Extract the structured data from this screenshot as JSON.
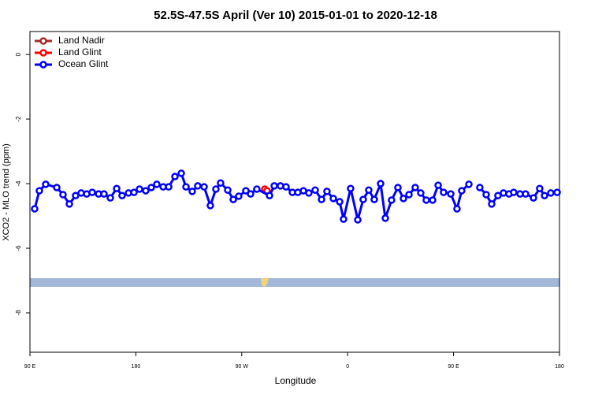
{
  "chart_data": {
    "type": "line",
    "title": "52.5S-47.5S April (Ver 10)   2015-01-01 to 2020-12-18",
    "x_label": "Longitude",
    "y_label": "XCO2 - MLO trend (ppm)",
    "xlim": [
      -270,
      180
    ],
    "xticks": [
      {
        "value": -270,
        "label": "90 E"
      },
      {
        "value": -180,
        "label": "180"
      },
      {
        "value": -90,
        "label": "90 W"
      },
      0,
      {
        "value": 90,
        "label": "90 E"
      },
      180
    ],
    "ylim": [
      -9.22,
      0.71
    ],
    "yticks": [
      0,
      -2,
      -4,
      -6,
      -8
    ],
    "legend": "top-left",
    "series": [
      {
        "name": "Land Nadir",
        "color": "#a52a2a",
        "x": [],
        "values": []
      },
      {
        "name": "Land Glint",
        "color": "#ff0000",
        "x": [
          -70.5,
          -68.5
        ],
        "values": [
          -4.17,
          -4.22
        ]
      },
      {
        "name": "Ocean Glint",
        "color": "#0000ff",
        "x": [
          -266.0,
          -262.0,
          -256.6,
          -247.2,
          -241.9,
          -236.5,
          -231.2,
          -226.5,
          -221.8,
          -217.1,
          -211.7,
          -207.1,
          -201.7,
          -196.3,
          -191.7,
          -186.3,
          -181.6,
          -176.9,
          -171.6,
          -166.9,
          -162.2,
          -156.8,
          -152.1,
          -146.8,
          -141.4,
          -137.4,
          -132.1,
          -127.4,
          -122.0,
          -116.7,
          -112.0,
          -108.0,
          -101.9,
          -97.2,
          -92.6,
          -86.5,
          -82.5,
          -77.2,
          -66.4,
          -62.4,
          -57.1,
          -52.4,
          -47.0,
          -42.3,
          -37.6,
          -33.0,
          -27.6,
          -22.2,
          -17.6,
          -12.2,
          -6.8,
          -3.5,
          2.5,
          8.6,
          13.2,
          17.9,
          22.6,
          28.0,
          32.0,
          37.3,
          42.7,
          47.4,
          52.1,
          57.4,
          62.1,
          66.8,
          72.2,
          76.9,
          81.5,
          87.6,
          92.9,
          96.9,
          103.0,
          107.7,
          112.3,
          117.7,
          122.4,
          127.7,
          132.4,
          137.1,
          141.1,
          146.5,
          151.2,
          157.9,
          163.2,
          167.3,
          172.6,
          178.0
        ],
        "values": [
          -4.78,
          -4.22,
          -4.02,
          -4.12,
          -4.34,
          -4.63,
          -4.37,
          -4.29,
          -4.32,
          -4.27,
          -4.32,
          -4.32,
          -4.44,
          -4.15,
          -4.37,
          -4.29,
          -4.27,
          -4.17,
          -4.22,
          -4.12,
          -4.02,
          -4.1,
          -4.1,
          -3.78,
          -3.68,
          -4.1,
          -4.24,
          -4.07,
          -4.1,
          -4.68,
          -4.17,
          -3.98,
          -4.2,
          -4.49,
          -4.39,
          -4.22,
          -4.32,
          -4.17,
          -4.37,
          -4.07,
          -4.07,
          -4.1,
          -4.27,
          -4.27,
          -4.22,
          -4.29,
          -4.2,
          -4.49,
          -4.24,
          -4.46,
          -4.56,
          -5.1,
          -4.15,
          -5.12,
          -4.49,
          -4.2,
          -4.49,
          -4.0,
          -5.07,
          -4.51,
          -4.12,
          -4.46,
          -4.34,
          -4.12,
          -4.29,
          -4.51,
          -4.51,
          -4.05,
          -4.27,
          -4.32,
          -4.78,
          -4.22,
          -4.02,
          null,
          -4.12,
          -4.34,
          -4.63,
          -4.37,
          -4.29,
          -4.32,
          -4.27,
          -4.32,
          -4.32,
          -4.44,
          -4.15,
          -4.37,
          -4.29,
          -4.27
        ]
      }
    ]
  }
}
